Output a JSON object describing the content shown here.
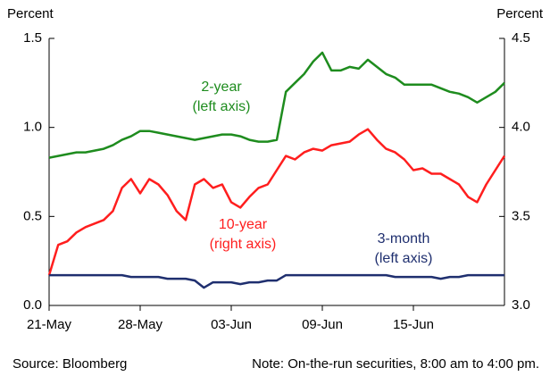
{
  "chart_data": {
    "type": "line",
    "left_axis_label": "Percent",
    "right_axis_label": "Percent",
    "source": "Source: Bloomberg",
    "note": "Note: On-the-run securities, 8:00 am to 4:00 pm.",
    "categories": [
      "21-May",
      null,
      null,
      null,
      null,
      null,
      null,
      null,
      null,
      null,
      "28-May",
      null,
      null,
      null,
      null,
      null,
      null,
      null,
      null,
      null,
      "03-Jun",
      null,
      null,
      null,
      null,
      null,
      null,
      null,
      null,
      null,
      "09-Jun",
      null,
      null,
      null,
      null,
      null,
      null,
      null,
      null,
      null,
      "15-Jun",
      null,
      null,
      null,
      null,
      null,
      null,
      null,
      null,
      null,
      null
    ],
    "ylim": [
      0,
      1.5
    ],
    "yticks": [
      {
        "value": 0,
        "label": "0.0"
      },
      0.5,
      {
        "value": 1,
        "label": "1.0"
      },
      1.5
    ],
    "y2lim": [
      3,
      4.5
    ],
    "y2ticks": [
      {
        "value": 3,
        "label": "3.0"
      },
      3.5,
      {
        "value": 4,
        "label": "4.0"
      },
      4.5
    ],
    "series": [
      {
        "name": "2-year",
        "axis_note": "(left axis)",
        "color": "#1e8c1e",
        "axis": "y",
        "values": [
          0.83,
          0.84,
          0.85,
          0.86,
          0.86,
          0.87,
          0.88,
          0.9,
          0.93,
          0.95,
          0.98,
          0.98,
          0.97,
          0.96,
          0.95,
          0.94,
          0.93,
          0.94,
          0.95,
          0.96,
          0.96,
          0.95,
          0.93,
          0.92,
          0.92,
          0.93,
          1.2,
          1.25,
          1.3,
          1.37,
          1.42,
          1.32,
          1.32,
          1.34,
          1.33,
          1.38,
          1.34,
          1.3,
          1.28,
          1.24,
          1.24,
          1.24,
          1.24,
          1.22,
          1.2,
          1.19,
          1.17,
          1.14,
          1.17,
          1.2,
          1.25
        ]
      },
      {
        "name": "10-year",
        "axis_note": "(right axis)",
        "color": "#ff1e1e",
        "axis": "y2",
        "values": [
          3.17,
          3.34,
          3.36,
          3.41,
          3.44,
          3.46,
          3.48,
          3.53,
          3.66,
          3.71,
          3.63,
          3.71,
          3.68,
          3.62,
          3.53,
          3.48,
          3.68,
          3.71,
          3.66,
          3.68,
          3.58,
          3.55,
          3.61,
          3.66,
          3.68,
          3.76,
          3.84,
          3.82,
          3.86,
          3.88,
          3.87,
          3.9,
          3.91,
          3.92,
          3.96,
          3.99,
          3.93,
          3.88,
          3.86,
          3.82,
          3.76,
          3.77,
          3.74,
          3.74,
          3.71,
          3.68,
          3.61,
          3.58,
          3.68,
          3.76,
          3.84
        ]
      },
      {
        "name": "3-month",
        "axis_note": "(left axis)",
        "color": "#1f2f6f",
        "axis": "y",
        "values": [
          0.17,
          0.17,
          0.17,
          0.17,
          0.17,
          0.17,
          0.17,
          0.17,
          0.17,
          0.16,
          0.16,
          0.16,
          0.16,
          0.15,
          0.15,
          0.15,
          0.14,
          0.1,
          0.13,
          0.13,
          0.13,
          0.12,
          0.13,
          0.13,
          0.14,
          0.14,
          0.17,
          0.17,
          0.17,
          0.17,
          0.17,
          0.17,
          0.17,
          0.17,
          0.17,
          0.17,
          0.17,
          0.17,
          0.16,
          0.16,
          0.16,
          0.16,
          0.16,
          0.15,
          0.16,
          0.16,
          0.17,
          0.17,
          0.17,
          0.17,
          0.17
        ]
      }
    ]
  }
}
